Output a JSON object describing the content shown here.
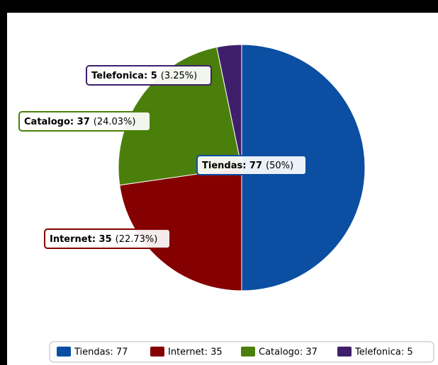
{
  "chart_data": {
    "type": "pie",
    "values": [
      77,
      35,
      37,
      5
    ],
    "value_labels": [
      "Tiendas: 77",
      "Internet: 35",
      "Catalogo: 37",
      "Telefonica: 5"
    ],
    "percent_labels": [
      "(50%)",
      "(22.73%)",
      "(24.03%)",
      "(3.25%)"
    ],
    "colors": [
      "#0b4ea2",
      "#850000",
      "#4b7f0c",
      "#3f1f6b"
    ]
  }
}
